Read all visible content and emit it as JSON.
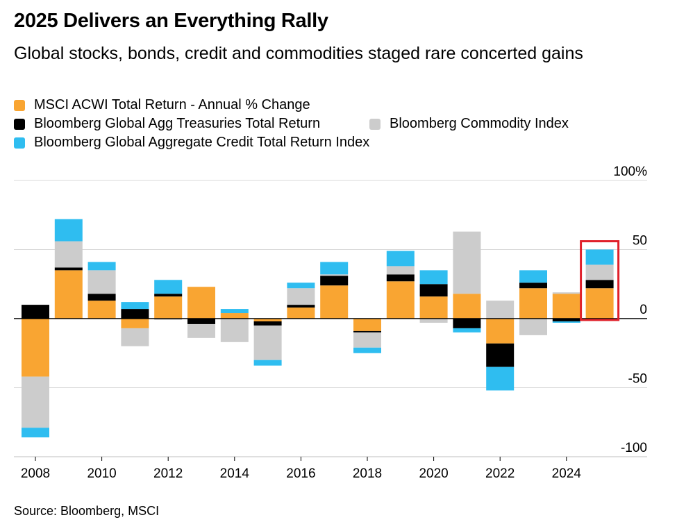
{
  "title": "2025 Delivers an Everything Rally",
  "subtitle": "Global stocks, bonds, credit and commodities staged rare concerted gains",
  "source": "Source: Bloomberg, MSCI",
  "colors": {
    "stocks": "#F9A532",
    "treasuries": "#000000",
    "commodities": "#CCCCCC",
    "credit": "#2FBDF0",
    "highlight": "#E0202A",
    "grid": "#D9D9D9",
    "zero_line": "#000000"
  },
  "legend": [
    {
      "key": "stocks",
      "label": "MSCI ACWI Total Return - Annual % Change"
    },
    {
      "key": "treasuries",
      "label": "Bloomberg Global Agg Treasuries Total Return"
    },
    {
      "key": "commodities",
      "label": "Bloomberg Commodity Index"
    },
    {
      "key": "credit",
      "label": "Bloomberg Global Aggregate Credit Total Return Index"
    }
  ],
  "chart_data": {
    "type": "bar",
    "stacked": true,
    "title": "2025 Delivers an Everything Rally",
    "ylabel": "%",
    "ylim": [
      -100,
      100
    ],
    "y_ticks": [
      {
        "value": 100,
        "label": "100%"
      },
      {
        "value": 50,
        "label": "50"
      },
      {
        "value": 0,
        "label": "0"
      },
      {
        "value": -50,
        "label": "-50"
      },
      {
        "value": -100,
        "label": "-100"
      }
    ],
    "x_tick_labels": [
      "2008",
      "2010",
      "2012",
      "2014",
      "2016",
      "2018",
      "2020",
      "2022",
      "2024"
    ],
    "categories": [
      "2008",
      "2009",
      "2010",
      "2011",
      "2012",
      "2013",
      "2014",
      "2015",
      "2016",
      "2017",
      "2018",
      "2019",
      "2020",
      "2021",
      "2022",
      "2023",
      "2024",
      "2025"
    ],
    "series": [
      {
        "name": "MSCI ACWI Total Return - Annual % Change",
        "key": "stocks",
        "values": [
          -42,
          35,
          13,
          -7,
          16,
          23,
          4,
          -2,
          8,
          24,
          -9,
          27,
          16,
          18,
          -18,
          22,
          18,
          22
        ]
      },
      {
        "name": "Bloomberg Global Agg Treasuries Total Return",
        "key": "treasuries",
        "values": [
          10,
          2,
          5,
          7,
          2,
          -4,
          0,
          -3,
          2,
          7,
          -1,
          5,
          9,
          -7,
          -17,
          4,
          -2,
          6
        ]
      },
      {
        "name": "Bloomberg Commodity Index",
        "key": "commodities",
        "values": [
          -37,
          19,
          17,
          -13,
          -1,
          -10,
          -17,
          -25,
          12,
          1,
          -11,
          6,
          -3,
          45,
          13,
          -12,
          1,
          11
        ]
      },
      {
        "name": "Bloomberg Global Aggregate Credit Total Return Index",
        "key": "credit",
        "values": [
          -7,
          16,
          6,
          5,
          10,
          0,
          3,
          -4,
          4,
          9,
          -4,
          11,
          10,
          -3,
          -17,
          9,
          -1,
          11
        ]
      }
    ],
    "highlight_category": "2025"
  }
}
